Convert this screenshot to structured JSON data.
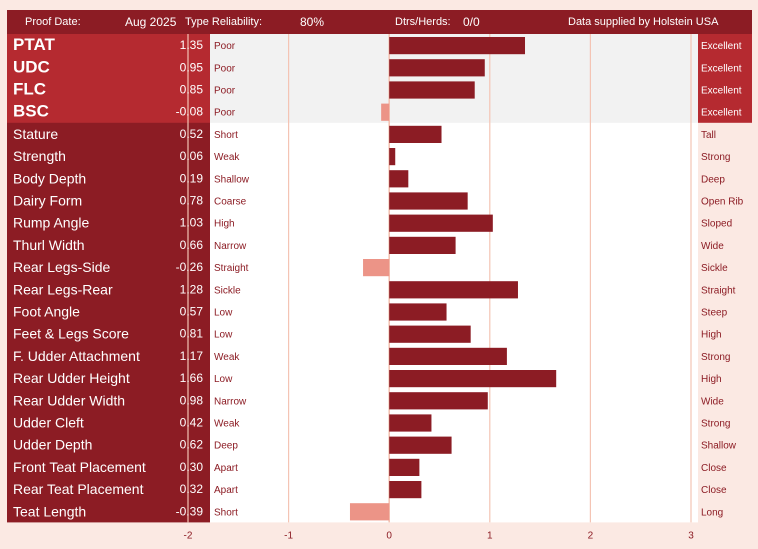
{
  "header": {
    "proof_date_label": "Proof Date:",
    "proof_date_value": "Aug 2025",
    "reliability_label": "Type Reliability:",
    "reliability_value": "80%",
    "dtrs_label": "Dtrs/Herds:",
    "dtrs_value": "0/0",
    "supplier": "Data supplied by Holstein USA"
  },
  "colors": {
    "positive_bar": "#8c1c24",
    "negative_bar": "#ec9487",
    "label_panel": "#8c1c24",
    "composite_panel": "#b52a30",
    "gridline": "#f4c4b4"
  },
  "chart_data": {
    "type": "bar",
    "orientation": "horizontal",
    "xlim": [
      -2,
      3
    ],
    "x_ticks": [
      -2,
      -1,
      0,
      1,
      2,
      3
    ],
    "traits": [
      {
        "name": "PTAT",
        "value": 1.35,
        "display": "1.35",
        "low": "Poor",
        "high": "Excellent",
        "composite": true
      },
      {
        "name": "UDC",
        "value": 0.95,
        "display": "0.95",
        "low": "Poor",
        "high": "Excellent",
        "composite": true
      },
      {
        "name": "FLC",
        "value": 0.85,
        "display": "0.85",
        "low": "Poor",
        "high": "Excellent",
        "composite": true
      },
      {
        "name": "BSC",
        "value": -0.08,
        "display": "-0.08",
        "low": "Poor",
        "high": "Excellent",
        "composite": true
      },
      {
        "name": "Stature",
        "value": 0.52,
        "display": "0.52",
        "low": "Short",
        "high": "Tall"
      },
      {
        "name": "Strength",
        "value": 0.06,
        "display": "0.06",
        "low": "Weak",
        "high": "Strong"
      },
      {
        "name": "Body Depth",
        "value": 0.19,
        "display": "0.19",
        "low": "Shallow",
        "high": "Deep"
      },
      {
        "name": "Dairy Form",
        "value": 0.78,
        "display": "0.78",
        "low": "Coarse",
        "high": "Open Rib"
      },
      {
        "name": "Rump Angle",
        "value": 1.03,
        "display": "1.03",
        "low": "High",
        "high": "Sloped"
      },
      {
        "name": "Thurl Width",
        "value": 0.66,
        "display": "0.66",
        "low": "Narrow",
        "high": "Wide"
      },
      {
        "name": "Rear Legs-Side",
        "value": -0.26,
        "display": "-0.26",
        "low": "Straight",
        "high": "Sickle"
      },
      {
        "name": "Rear Legs-Rear",
        "value": 1.28,
        "display": "1.28",
        "low": "Sickle",
        "high": "Straight"
      },
      {
        "name": "Foot Angle",
        "value": 0.57,
        "display": "0.57",
        "low": "Low",
        "high": "Steep"
      },
      {
        "name": "Feet & Legs Score",
        "value": 0.81,
        "display": "0.81",
        "low": "Low",
        "high": "High"
      },
      {
        "name": "F. Udder Attachment",
        "value": 1.17,
        "display": "1.17",
        "low": "Weak",
        "high": "Strong"
      },
      {
        "name": "Rear Udder Height",
        "value": 1.66,
        "display": "1.66",
        "low": "Low",
        "high": "High"
      },
      {
        "name": "Rear Udder Width",
        "value": 0.98,
        "display": "0.98",
        "low": "Narrow",
        "high": "Wide"
      },
      {
        "name": "Udder Cleft",
        "value": 0.42,
        "display": "0.42",
        "low": "Weak",
        "high": "Strong"
      },
      {
        "name": "Udder Depth",
        "value": 0.62,
        "display": "0.62",
        "low": "Deep",
        "high": "Shallow"
      },
      {
        "name": "Front Teat Placement",
        "value": 0.3,
        "display": "0.30",
        "low": "Apart",
        "high": "Close"
      },
      {
        "name": "Rear Teat Placement",
        "value": 0.32,
        "display": "0.32",
        "low": "Apart",
        "high": "Close"
      },
      {
        "name": "Teat Length",
        "value": -0.39,
        "display": "-0.39",
        "low": "Short",
        "high": "Long"
      }
    ]
  }
}
